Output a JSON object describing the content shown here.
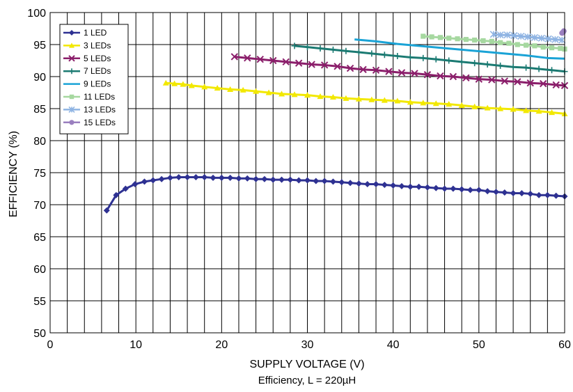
{
  "chart_data": {
    "type": "line",
    "title": "",
    "subtitle": "Efficiency, L = 220µH",
    "xlabel": "SUPPLY VOLTAGE (V)",
    "ylabel": "EFFICIENCY (%)",
    "xlim": [
      0,
      60
    ],
    "ylim": [
      50,
      100
    ],
    "xticks": [
      0,
      10,
      20,
      30,
      40,
      50,
      60
    ],
    "yticks": [
      50,
      55,
      60,
      65,
      70,
      75,
      80,
      85,
      90,
      95,
      100
    ],
    "grid": true,
    "legend_position": "top-left",
    "series": [
      {
        "name": "1 LED",
        "color": "#2e3192",
        "marker": "diamond",
        "x": [
          6.6,
          7.7,
          8.8,
          9.9,
          11,
          12,
          13,
          14,
          15,
          16,
          17,
          18,
          19,
          20,
          21,
          22,
          23,
          24,
          25,
          26,
          27,
          28,
          29,
          30,
          31,
          32,
          33,
          34,
          35,
          36,
          37,
          38,
          39,
          40,
          41,
          42,
          43,
          44,
          45,
          46,
          47,
          48,
          49,
          50,
          51,
          52,
          53,
          54,
          55,
          56,
          57,
          58,
          59,
          60
        ],
        "y": [
          69.1,
          71.5,
          72.5,
          73.2,
          73.6,
          73.8,
          74.0,
          74.2,
          74.3,
          74.3,
          74.3,
          74.3,
          74.2,
          74.2,
          74.2,
          74.1,
          74.1,
          74.0,
          74.0,
          73.9,
          73.9,
          73.9,
          73.8,
          73.8,
          73.7,
          73.7,
          73.6,
          73.5,
          73.4,
          73.3,
          73.2,
          73.2,
          73.1,
          73.0,
          72.9,
          72.8,
          72.8,
          72.7,
          72.6,
          72.5,
          72.5,
          72.4,
          72.3,
          72.3,
          72.1,
          72.0,
          71.9,
          71.8,
          71.8,
          71.7,
          71.5,
          71.5,
          71.4,
          71.3
        ]
      },
      {
        "name": "3 LEDs",
        "color": "#f2e800",
        "marker": "triangle",
        "x": [
          13.5,
          14.5,
          15.5,
          16.5,
          18,
          19.5,
          21,
          22.5,
          24,
          25.5,
          27,
          28.5,
          30,
          31.5,
          33,
          34.5,
          36,
          37.5,
          39,
          40.5,
          42,
          43.5,
          45,
          46.5,
          48,
          49.5,
          51,
          52.5,
          54,
          55.5,
          57,
          58.5,
          60
        ],
        "y": [
          89.0,
          88.9,
          88.8,
          88.6,
          88.4,
          88.2,
          88.0,
          87.9,
          87.7,
          87.5,
          87.3,
          87.2,
          87.1,
          86.9,
          86.8,
          86.6,
          86.5,
          86.4,
          86.3,
          86.2,
          86.0,
          85.9,
          85.8,
          85.7,
          85.5,
          85.3,
          85.1,
          85.0,
          84.9,
          84.7,
          84.6,
          84.4,
          84.2
        ]
      },
      {
        "name": "5 LEDs",
        "color": "#8b1f6b",
        "marker": "x",
        "x": [
          21.5,
          23,
          24.5,
          26,
          27.5,
          29,
          30.5,
          32,
          33.5,
          35,
          36.5,
          38,
          39.5,
          41,
          42.5,
          44,
          45.5,
          47,
          48.5,
          50,
          51.5,
          53,
          54.5,
          56,
          57.5,
          59,
          60
        ],
        "y": [
          93.1,
          92.9,
          92.7,
          92.5,
          92.3,
          92.1,
          91.9,
          91.8,
          91.6,
          91.3,
          91.1,
          91.0,
          90.8,
          90.6,
          90.5,
          90.3,
          90.1,
          90.0,
          89.8,
          89.6,
          89.5,
          89.3,
          89.2,
          89.0,
          88.9,
          88.7,
          88.6
        ]
      },
      {
        "name": "7 LEDs",
        "color": "#1b7a72",
        "marker": "plus",
        "x": [
          28.5,
          30,
          31.5,
          33,
          34.5,
          36,
          37.5,
          39,
          40.5,
          42,
          43.5,
          45,
          46.5,
          48,
          49.5,
          51,
          52.5,
          54,
          55.5,
          57,
          58.5,
          60
        ],
        "y": [
          94.8,
          94.6,
          94.4,
          94.2,
          94.0,
          93.8,
          93.6,
          93.4,
          93.2,
          93.0,
          92.9,
          92.7,
          92.5,
          92.3,
          92.1,
          91.9,
          91.7,
          91.5,
          91.4,
          91.2,
          91.0,
          90.8
        ]
      },
      {
        "name": "9 LEDs",
        "color": "#1aa3d6",
        "marker": "none",
        "x": [
          35.5,
          38,
          40.5,
          43,
          45.5,
          48,
          50.5,
          53,
          55.5,
          58,
          60
        ],
        "y": [
          95.8,
          95.5,
          95.1,
          94.8,
          94.5,
          94.2,
          93.9,
          93.6,
          93.3,
          92.9,
          92.8
        ]
      },
      {
        "name": "11 LEDs",
        "color": "#a6d8a0",
        "marker": "square",
        "x": [
          43.5,
          44.5,
          45.5,
          46.5,
          47.5,
          48.5,
          49.5,
          50.5,
          51.5,
          52.5,
          53.5,
          54.5,
          55.5,
          56.5,
          57.5,
          58.5,
          59.5,
          60
        ],
        "y": [
          96.3,
          96.2,
          96.1,
          96.0,
          95.9,
          95.8,
          95.7,
          95.6,
          95.5,
          95.3,
          95.2,
          95.0,
          94.9,
          94.8,
          94.6,
          94.5,
          94.4,
          94.3
        ]
      },
      {
        "name": "13 LEDs",
        "color": "#8fb4e3",
        "marker": "asterisk",
        "x": [
          51.7,
          52.5,
          53.3,
          54.1,
          54.9,
          55.7,
          56.5,
          57.3,
          58.1,
          58.9,
          59.7
        ],
        "y": [
          96.6,
          96.5,
          96.5,
          96.4,
          96.3,
          96.2,
          96.1,
          96.0,
          95.9,
          95.8,
          95.7
        ]
      },
      {
        "name": "15 LEDs",
        "color": "#9a7fbf",
        "marker": "circle",
        "x": [
          59.7,
          59.8,
          59.9
        ],
        "y": [
          96.8,
          96.9,
          97.1
        ]
      }
    ]
  }
}
